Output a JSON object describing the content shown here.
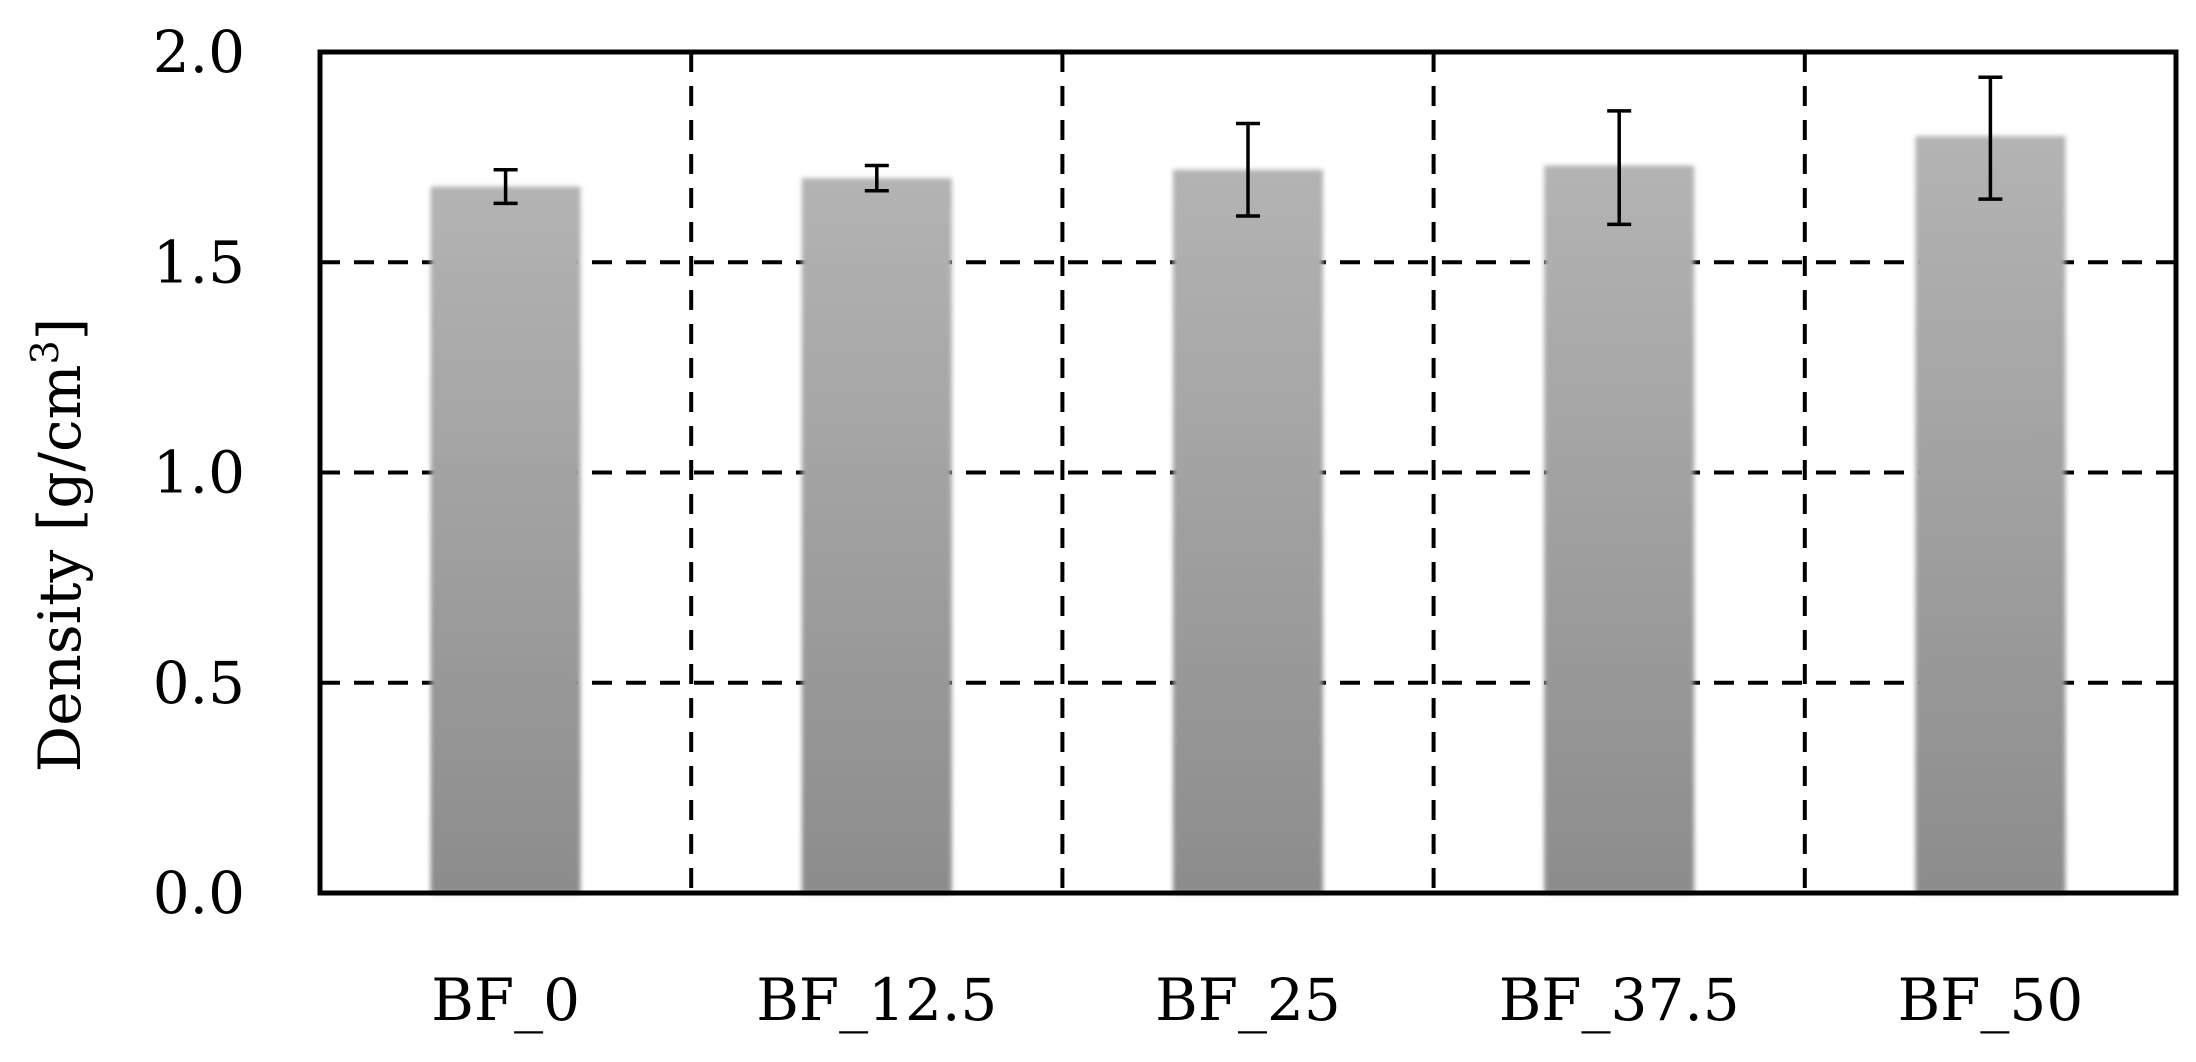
{
  "chart_data": {
    "type": "bar",
    "title": "",
    "xlabel": "",
    "ylabel": "Density [g/cm",
    "ylabel_superscript": "3",
    "ylabel_close": "]",
    "categories": [
      "BF_0",
      "BF_12.5",
      "BF_25",
      "BF_37.5",
      "BF_50"
    ],
    "values": [
      1.68,
      1.7,
      1.72,
      1.73,
      1.8
    ],
    "error_bars": [
      [
        1.64,
        1.72
      ],
      [
        1.67,
        1.73
      ],
      [
        1.61,
        1.83
      ],
      [
        1.59,
        1.86
      ],
      [
        1.65,
        1.94
      ]
    ],
    "ylim": [
      0,
      2.0
    ],
    "yticks": [
      "0.0",
      "0.5",
      "1.0",
      "1.5",
      "2.0"
    ],
    "ytick_values": [
      0,
      0.5,
      1.0,
      1.5,
      2.0
    ],
    "grid": "dashed, both axes",
    "legend": "none",
    "colors": {
      "bar_top": "#b3b3b3",
      "bar_bottom": "#8c8c8c",
      "axis": "#000000"
    }
  }
}
